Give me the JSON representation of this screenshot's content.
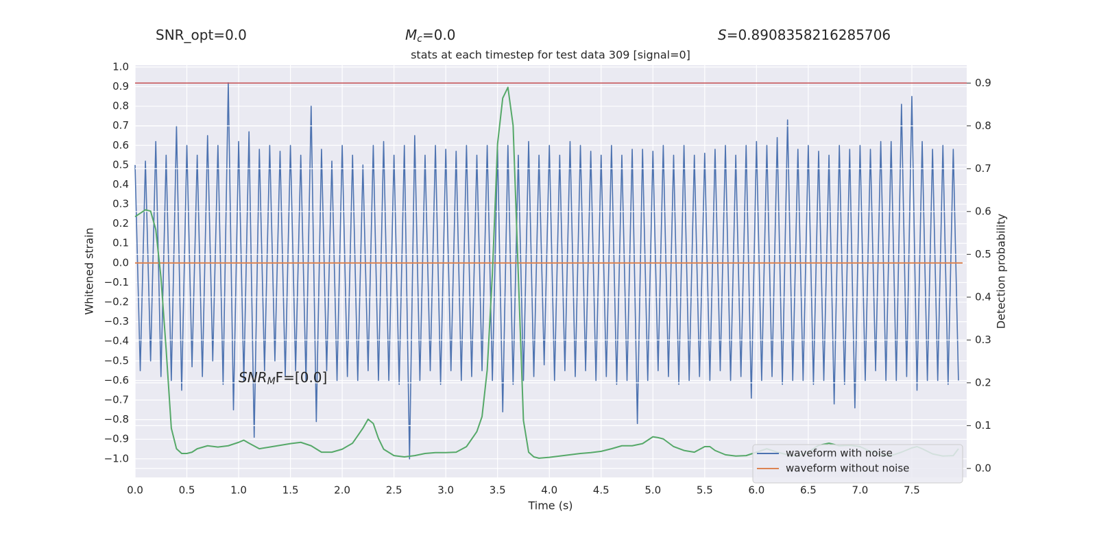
{
  "chart_data": {
    "type": "line",
    "title": "stats at each timestep for test data 309 [signal=0]",
    "annotations": [
      {
        "text": "SNR_opt=0.0"
      },
      {
        "symbol": "M",
        "sub": "c",
        "text": "=0.0"
      },
      {
        "symbol": "S",
        "text": "=0.8908358216285706"
      },
      {
        "symbol": "SNR",
        "sub": "M",
        "text": "F=[0.0]"
      }
    ],
    "xlabel": "Time (s)",
    "ylabel": "Whitened strain",
    "y2label": "Detection probability",
    "xlim": [
      0,
      8.03
    ],
    "ylim": [
      -1.095,
      1.01
    ],
    "y2lim": [
      -0.021,
      0.942
    ],
    "xticks": [
      {
        "value": 0,
        "label": "0.0"
      },
      0.5,
      {
        "value": 1,
        "label": "1.0"
      },
      1.5,
      {
        "value": 2,
        "label": "2.0"
      },
      2.5,
      {
        "value": 3,
        "label": "3.0"
      },
      3.5,
      {
        "value": 4,
        "label": "4.0"
      },
      4.5,
      {
        "value": 5,
        "label": "5.0"
      },
      5.5,
      {
        "value": 6,
        "label": "6.0"
      },
      6.5,
      {
        "value": 7,
        "label": "7.0"
      },
      7.5
    ],
    "yticks": [
      {
        "value": -1,
        "label": "−1.0"
      },
      {
        "value": -0.9,
        "label": "−0.9"
      },
      {
        "value": -0.8,
        "label": "−0.8"
      },
      {
        "value": -0.7,
        "label": "−0.7"
      },
      {
        "value": -0.6,
        "label": "−0.6"
      },
      {
        "value": -0.5,
        "label": "−0.5"
      },
      {
        "value": -0.4,
        "label": "−0.4"
      },
      {
        "value": -0.3,
        "label": "−0.3"
      },
      {
        "value": -0.2,
        "label": "−0.2"
      },
      {
        "value": -0.1,
        "label": "−0.1"
      },
      {
        "value": 0,
        "label": "0.0"
      },
      0.1,
      0.2,
      0.3,
      0.4,
      0.5,
      0.6,
      0.7,
      0.8,
      0.9,
      {
        "value": 1,
        "label": "1.0"
      }
    ],
    "y2ticks": [
      {
        "value": 0,
        "label": "0.0"
      },
      0.1,
      0.2,
      0.3,
      0.4,
      0.5,
      0.6,
      0.7,
      0.8,
      0.9
    ],
    "grid": true,
    "legend": "lower right",
    "background": "#eaeaf2",
    "hlines": [
      {
        "value": 0.9,
        "axis": "y2",
        "color": "#c44e52"
      }
    ],
    "series": [
      {
        "name": "waveform with noise",
        "color": "#4c72b0",
        "x": [
          0,
          0.05,
          0.1,
          0.15,
          0.2,
          0.25,
          0.3,
          0.35,
          0.4,
          0.45,
          0.5,
          0.55,
          0.6,
          0.65,
          0.7,
          0.75,
          0.8,
          0.85,
          0.9,
          0.95,
          1,
          1.05,
          1.1,
          1.15,
          1.2,
          1.25,
          1.3,
          1.35,
          1.4,
          1.45,
          1.5,
          1.55,
          1.6,
          1.65,
          1.7,
          1.75,
          1.8,
          1.85,
          1.9,
          1.95,
          2,
          2.05,
          2.1,
          2.15,
          2.2,
          2.25,
          2.3,
          2.35,
          2.4,
          2.45,
          2.5,
          2.55,
          2.6,
          2.65,
          2.7,
          2.75,
          2.8,
          2.85,
          2.9,
          2.95,
          3,
          3.05,
          3.1,
          3.15,
          3.2,
          3.25,
          3.3,
          3.35,
          3.4,
          3.45,
          3.5,
          3.55,
          3.6,
          3.65,
          3.7,
          3.75,
          3.8,
          3.85,
          3.9,
          3.95,
          4,
          4.05,
          4.1,
          4.15,
          4.2,
          4.25,
          4.3,
          4.35,
          4.4,
          4.45,
          4.5,
          4.55,
          4.6,
          4.65,
          4.7,
          4.75,
          4.8,
          4.85,
          4.9,
          4.95,
          5,
          5.05,
          5.1,
          5.15,
          5.2,
          5.25,
          5.3,
          5.35,
          5.4,
          5.45,
          5.5,
          5.55,
          5.6,
          5.65,
          5.7,
          5.75,
          5.8,
          5.85,
          5.9,
          5.95,
          6,
          6.05,
          6.1,
          6.15,
          6.2,
          6.25,
          6.3,
          6.35,
          6.4,
          6.45,
          6.5,
          6.55,
          6.6,
          6.65,
          6.7,
          6.75,
          6.8,
          6.85,
          6.9,
          6.95,
          7,
          7.05,
          7.1,
          7.15,
          7.2,
          7.25,
          7.3,
          7.35,
          7.4,
          7.45,
          7.5,
          7.55,
          7.6,
          7.65,
          7.7,
          7.75,
          7.8,
          7.85,
          7.9,
          7.95
        ],
        "values": [
          0.5,
          -0.55,
          0.52,
          -0.5,
          0.62,
          -0.58,
          0.55,
          -0.6,
          0.7,
          -0.65,
          0.6,
          -0.53,
          0.55,
          -0.58,
          0.65,
          -0.5,
          0.6,
          -0.62,
          0.92,
          -0.75,
          0.62,
          -0.6,
          0.67,
          -0.89,
          0.58,
          -0.55,
          0.6,
          -0.5,
          0.57,
          -0.58,
          0.6,
          -0.55,
          0.55,
          -0.6,
          0.8,
          -0.81,
          0.58,
          -0.55,
          0.52,
          -0.6,
          0.6,
          -0.58,
          0.55,
          -0.6,
          0.5,
          -0.55,
          0.6,
          -0.6,
          0.62,
          -0.6,
          0.55,
          -0.62,
          0.6,
          -1.0,
          0.65,
          -0.6,
          0.55,
          -0.55,
          0.6,
          -0.62,
          0.58,
          -0.55,
          0.57,
          -0.6,
          0.6,
          -0.58,
          0.55,
          -0.55,
          0.6,
          -0.6,
          0.58,
          -0.76,
          0.6,
          -0.62,
          0.55,
          -0.6,
          0.62,
          -0.58,
          0.55,
          -0.52,
          0.6,
          -0.6,
          0.55,
          -0.55,
          0.62,
          -0.58,
          0.6,
          -0.55,
          0.57,
          -0.6,
          0.55,
          -0.58,
          0.6,
          -0.62,
          0.55,
          -0.6,
          0.58,
          -0.82,
          0.58,
          -0.6,
          0.57,
          -0.55,
          0.6,
          -0.58,
          0.55,
          -0.62,
          0.6,
          -0.6,
          0.55,
          -0.58,
          0.56,
          -0.6,
          0.58,
          -0.55,
          0.6,
          -0.6,
          0.55,
          -0.58,
          0.6,
          -0.69,
          0.62,
          -0.6,
          0.6,
          -0.58,
          0.64,
          -0.62,
          0.73,
          -0.6,
          0.58,
          -0.6,
          0.6,
          -0.62,
          0.57,
          -0.6,
          0.55,
          -0.72,
          0.6,
          -0.62,
          0.58,
          -0.74,
          0.6,
          -0.6,
          0.58,
          -0.55,
          0.62,
          -0.6,
          0.62,
          -0.6,
          0.81,
          -0.58,
          0.85,
          -0.65,
          0.62,
          -0.6,
          0.58,
          -0.6,
          0.6,
          -0.62,
          0.58,
          -0.6
        ]
      },
      {
        "name": "waveform without noise",
        "color": "#dd8452",
        "x": [
          0,
          7.99
        ],
        "values": [
          0,
          0
        ]
      },
      {
        "color": "#55a868",
        "axis": "y2",
        "x": [
          0,
          0.1,
          0.15,
          0.2,
          0.25,
          0.3,
          0.35,
          0.4,
          0.45,
          0.5,
          0.55,
          0.6,
          0.7,
          0.8,
          0.9,
          1.0,
          1.05,
          1.1,
          1.2,
          1.3,
          1.4,
          1.5,
          1.6,
          1.7,
          1.8,
          1.9,
          2.0,
          2.1,
          2.2,
          2.25,
          2.3,
          2.35,
          2.4,
          2.5,
          2.6,
          2.7,
          2.8,
          2.9,
          3.0,
          3.1,
          3.2,
          3.3,
          3.35,
          3.4,
          3.45,
          3.5,
          3.55,
          3.6,
          3.65,
          3.7,
          3.75,
          3.8,
          3.85,
          3.9,
          4.0,
          4.1,
          4.2,
          4.3,
          4.4,
          4.5,
          4.6,
          4.7,
          4.8,
          4.9,
          5.0,
          5.05,
          5.1,
          5.2,
          5.3,
          5.4,
          5.5,
          5.55,
          5.6,
          5.7,
          5.8,
          5.9,
          6.0,
          6.1,
          6.2,
          6.3,
          6.4,
          6.5,
          6.6,
          6.7,
          6.8,
          6.9,
          7.0,
          7.1,
          7.2,
          7.3,
          7.4,
          7.5,
          7.55,
          7.6,
          7.7,
          7.8,
          7.9,
          7.95
        ],
        "values": [
          0.588,
          0.604,
          0.601,
          0.558,
          0.446,
          0.278,
          0.094,
          0.046,
          0.035,
          0.035,
          0.038,
          0.046,
          0.053,
          0.05,
          0.053,
          0.061,
          0.066,
          0.059,
          0.046,
          0.05,
          0.054,
          0.058,
          0.061,
          0.053,
          0.038,
          0.038,
          0.045,
          0.059,
          0.094,
          0.115,
          0.105,
          0.07,
          0.045,
          0.03,
          0.027,
          0.03,
          0.035,
          0.037,
          0.037,
          0.038,
          0.051,
          0.086,
          0.121,
          0.23,
          0.454,
          0.758,
          0.865,
          0.89,
          0.801,
          0.454,
          0.112,
          0.038,
          0.027,
          0.024,
          0.026,
          0.029,
          0.032,
          0.035,
          0.037,
          0.04,
          0.046,
          0.053,
          0.053,
          0.058,
          0.074,
          0.072,
          0.069,
          0.051,
          0.042,
          0.038,
          0.051,
          0.051,
          0.042,
          0.032,
          0.029,
          0.03,
          0.038,
          0.046,
          0.038,
          0.032,
          0.029,
          0.038,
          0.054,
          0.059,
          0.053,
          0.054,
          0.051,
          0.04,
          0.032,
          0.03,
          0.038,
          0.048,
          0.051,
          0.046,
          0.034,
          0.029,
          0.03,
          0.046
        ]
      }
    ]
  }
}
